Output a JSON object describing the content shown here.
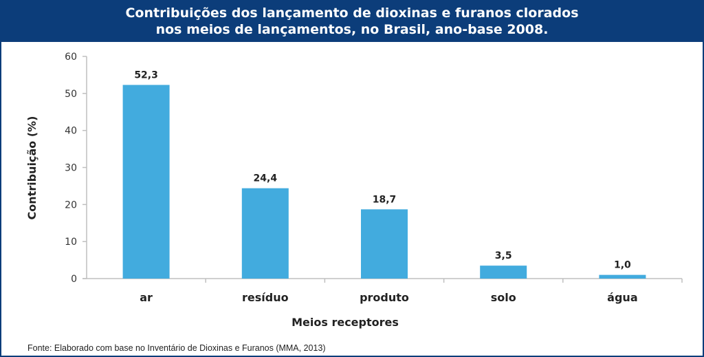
{
  "chart_data": {
    "type": "bar",
    "title_line1": "Contribuições dos lançamento de dioxinas e furanos clorados",
    "title_line2": "nos meios de lançamentos, no Brasil, ano-base 2008.",
    "xlabel": "Meios receptores",
    "ylabel": "Contribuição (%)",
    "categories": [
      "ar",
      "resíduo",
      "produto",
      "solo",
      "água"
    ],
    "values": [
      52.3,
      24.4,
      18.7,
      3.5,
      1.0
    ],
    "data_labels": [
      "52,3",
      "24,4",
      "18,7",
      "3,5",
      "1,0"
    ],
    "ylim": [
      0,
      60
    ],
    "yticks": [
      0,
      10,
      20,
      30,
      40,
      50,
      60
    ],
    "grid": false,
    "bar_color": "#42abde"
  },
  "colors": {
    "header_bg": "#0c3d7a",
    "header_text": "#ffffff"
  },
  "footnote": "Fonte: Elaborado com base no Inventário de Dioxinas e Furanos (MMA, 2013)"
}
